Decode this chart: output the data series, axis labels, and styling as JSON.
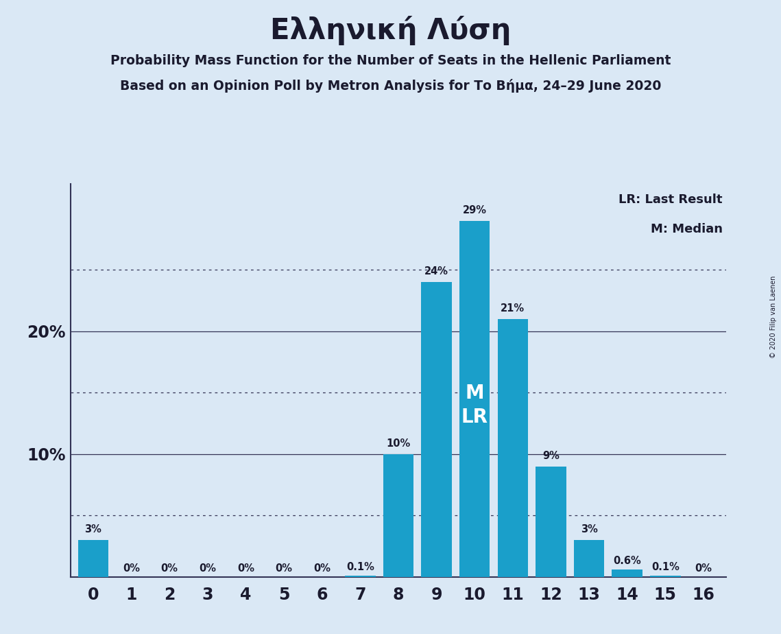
{
  "title": "Ελληνική Λύση",
  "subtitle1": "Probability Mass Function for the Number of Seats in the Hellenic Parliament",
  "subtitle2": "Based on an Opinion Poll by Metron Analysis for Το Βήμα, 24–29 June 2020",
  "copyright": "© 2020 Filip van Laenen",
  "legend_lr": "LR: Last Result",
  "legend_m": "M: Median",
  "categories": [
    0,
    1,
    2,
    3,
    4,
    5,
    6,
    7,
    8,
    9,
    10,
    11,
    12,
    13,
    14,
    15,
    16
  ],
  "values": [
    3,
    0,
    0,
    0,
    0,
    0,
    0,
    0.1,
    10,
    24,
    29,
    21,
    9,
    3,
    0.6,
    0.1,
    0
  ],
  "bar_labels": [
    "3%",
    "0%",
    "0%",
    "0%",
    "0%",
    "0%",
    "0%",
    "0.1%",
    "10%",
    "24%",
    "29%",
    "21%",
    "9%",
    "3%",
    "0.6%",
    "0.1%",
    "0%"
  ],
  "bar_color": "#1a9fca",
  "background_color": "#dae8f5",
  "text_color": "#1a1a2e",
  "ml_bar": 10,
  "ylim_max": 32,
  "solid_gridlines": [
    10,
    20
  ],
  "dotted_gridlines": [
    5,
    15,
    25
  ],
  "ytick_values": [
    10,
    20
  ],
  "ytick_labels": [
    "10%",
    "20%"
  ]
}
